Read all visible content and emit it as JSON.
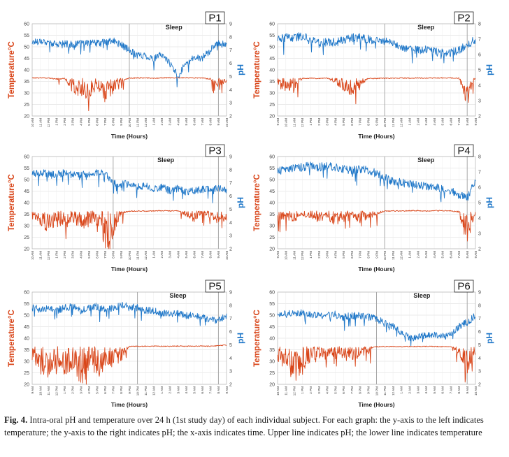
{
  "figure": {
    "caption_label": "Fig. 4.",
    "caption_text": "Intra-oral pH and temperature over 24 h (1st study day) of each individual subject. For each graph: the y-axis to the left indicates temperature; the y-axis to the right indicates pH; the x-axis indicates time. Upper line indicates pH; the lower line indicates temperature"
  },
  "colors": {
    "ph": "#1f77c8",
    "temperature": "#d9461a",
    "grid": "#d7d7d7"
  },
  "chart_data": [
    {
      "id": "P1",
      "type": "line",
      "title": "P1",
      "xlabel": "Time (Hours)",
      "ylabel_left": "Temperature°C",
      "ylabel_right": "pH",
      "annotation": "Sleep",
      "ylim_left": [
        20,
        60
      ],
      "ylim_right": [
        2,
        9
      ],
      "x": [
        "10 AM",
        "11 AM",
        "12 PM",
        "1 PM",
        "2 PM",
        "3 PM",
        "4 PM",
        "5 PM",
        "6 PM",
        "7 PM",
        "8 PM",
        "9 PM",
        "10 PM",
        "11 PM",
        "12 AM",
        "1 AM",
        "2 AM",
        "3 AM",
        "4 AM",
        "5 AM",
        "6 AM",
        "7 AM",
        "8 AM",
        "9 AM",
        "10 AM"
      ],
      "sleep_span": [
        12,
        23
      ],
      "series": [
        {
          "name": "pH",
          "axis": "right",
          "values": [
            7.6,
            7.7,
            7.6,
            7.4,
            7.5,
            7.4,
            7.5,
            7.6,
            7.5,
            7.6,
            7.7,
            7.4,
            7.0,
            6.6,
            6.6,
            6.3,
            6.7,
            6.0,
            5.0,
            6.0,
            6.4,
            6.4,
            7.0,
            7.5,
            7.4
          ]
        },
        {
          "name": "Temperature",
          "axis": "left",
          "values": [
            36.5,
            36.5,
            36.5,
            36.0,
            36.3,
            33.0,
            32.0,
            31.5,
            34.0,
            31.0,
            33.0,
            35.5,
            36.4,
            36.5,
            36.5,
            36.4,
            36.5,
            36.6,
            36.5,
            36.6,
            36.5,
            36.5,
            36.0,
            34.0,
            35.5
          ]
        }
      ]
    },
    {
      "id": "P2",
      "type": "line",
      "title": "P2",
      "xlabel": "Time (Hours)",
      "ylabel_left": "Temperature°C",
      "ylabel_right": "pH",
      "annotation": "Sleep",
      "ylim_left": [
        20,
        60
      ],
      "ylim_right": [
        2,
        8
      ],
      "x": [
        "9 AM",
        "10 AM",
        "11 AM",
        "12 PM",
        "1 PM",
        "2 PM",
        "3 PM",
        "4 PM",
        "5 PM",
        "6 PM",
        "7 PM",
        "8 PM",
        "9 PM",
        "10 PM",
        "11 PM",
        "12 AM",
        "1 AM",
        "2 AM",
        "3 AM",
        "4 AM",
        "5 AM",
        "6 AM",
        "7 AM",
        "8 AM",
        "9 AM"
      ],
      "sleep_span": [
        13,
        23
      ],
      "series": [
        {
          "name": "pH",
          "axis": "right",
          "values": [
            7.0,
            7.1,
            7.1,
            7.2,
            7.0,
            6.8,
            6.8,
            6.8,
            6.9,
            7.1,
            7.1,
            7.0,
            6.9,
            6.9,
            6.7,
            6.5,
            6.4,
            6.3,
            6.3,
            6.2,
            6.1,
            6.1,
            6.3,
            6.6,
            7.0
          ]
        },
        {
          "name": "Temperature",
          "axis": "left",
          "values": [
            35.0,
            34.0,
            33.0,
            36.3,
            36.4,
            36.3,
            36.5,
            35.0,
            33.5,
            32.0,
            34.5,
            36.2,
            36.3,
            36.4,
            36.4,
            36.5,
            36.4,
            36.5,
            36.4,
            36.5,
            36.5,
            36.5,
            36.4,
            30.0,
            36.4
          ]
        }
      ]
    },
    {
      "id": "P3",
      "type": "line",
      "title": "P3",
      "xlabel": "Time (Hours)",
      "ylabel_left": "Temperature°C",
      "ylabel_right": "pH",
      "annotation": "Sleep",
      "ylim_left": [
        20,
        60
      ],
      "ylim_right": [
        2,
        9
      ],
      "x": [
        "10 AM",
        "11 AM",
        "12 PM",
        "1 PM",
        "2 PM",
        "3 PM",
        "4 PM",
        "5 PM",
        "6 PM",
        "7 PM",
        "8 PM",
        "9 PM",
        "10 PM",
        "11 PM",
        "12 AM",
        "1 AM",
        "2 AM",
        "3 AM",
        "4 AM",
        "5 AM",
        "6 AM",
        "7 AM",
        "8 AM",
        "9 AM",
        "10 AM"
      ],
      "sleep_span": [
        10,
        23
      ],
      "series": [
        {
          "name": "pH",
          "axis": "right",
          "values": [
            7.7,
            7.8,
            7.7,
            7.6,
            7.8,
            7.6,
            7.6,
            7.7,
            7.8,
            7.7,
            7.0,
            6.9,
            7.0,
            6.7,
            6.8,
            6.5,
            6.7,
            6.4,
            6.6,
            6.3,
            6.4,
            6.5,
            6.5,
            6.6,
            6.4
          ]
        },
        {
          "name": "Temperature",
          "axis": "left",
          "values": [
            36.0,
            32.5,
            32.0,
            33.0,
            32.5,
            33.5,
            33.0,
            32.0,
            31.5,
            24.0,
            30.0,
            35.5,
            36.3,
            36.4,
            36.3,
            36.4,
            36.5,
            36.4,
            36.5,
            35.0,
            34.0,
            36.0,
            34.5,
            33.5,
            34.0
          ]
        }
      ]
    },
    {
      "id": "P4",
      "type": "line",
      "title": "P4",
      "xlabel": "Time (Hours)",
      "ylabel_left": "Temperature°C",
      "ylabel_right": "pH",
      "annotation": "Sleep",
      "ylim_left": [
        20,
        60
      ],
      "ylim_right": [
        2,
        8
      ],
      "x": [
        "9 AM",
        "10 AM",
        "11 AM",
        "12 PM",
        "1 PM",
        "2 PM",
        "3 PM",
        "4 PM",
        "5 PM",
        "6 PM",
        "7 PM",
        "8 PM",
        "9 PM",
        "10 PM",
        "11 PM",
        "12 AM",
        "1 AM",
        "2 AM",
        "3 AM",
        "4 AM",
        "5 AM",
        "6 AM",
        "7 AM",
        "8 AM",
        "9 AM"
      ],
      "sleep_span": [
        13,
        23
      ],
      "series": [
        {
          "name": "pH",
          "axis": "right",
          "values": [
            7.0,
            7.2,
            7.3,
            7.3,
            7.4,
            7.3,
            7.4,
            7.3,
            7.2,
            7.1,
            7.2,
            7.1,
            6.9,
            6.6,
            6.4,
            6.3,
            6.2,
            6.1,
            6.1,
            6.0,
            5.9,
            5.8,
            5.5,
            5.3,
            6.5
          ]
        },
        {
          "name": "Temperature",
          "axis": "left",
          "values": [
            34.0,
            34.5,
            34.0,
            35.0,
            34.5,
            33.5,
            34.5,
            33.0,
            34.0,
            35.0,
            33.5,
            34.5,
            35.5,
            36.3,
            36.4,
            36.4,
            36.5,
            36.5,
            36.4,
            36.5,
            36.5,
            36.4,
            36.0,
            27.0,
            36.0
          ]
        }
      ]
    },
    {
      "id": "P5",
      "type": "line",
      "title": "P5",
      "xlabel": "Time (Hours)",
      "ylabel_left": "Temperature°C",
      "ylabel_right": "pH",
      "annotation": "Sleep",
      "ylim_left": [
        20,
        60
      ],
      "ylim_right": [
        2,
        9
      ],
      "x": [
        "9 AM",
        "10 AM",
        "11 AM",
        "12 PM",
        "1 PM",
        "2 PM",
        "3 PM",
        "4 PM",
        "5 PM",
        "6 PM",
        "7 PM",
        "8 PM",
        "9 PM",
        "10 PM",
        "11 PM",
        "12 AM",
        "1 AM",
        "2 AM",
        "3 AM",
        "4 AM",
        "5 AM",
        "6 AM",
        "7 AM",
        "8 AM",
        "9 AM"
      ],
      "sleep_span": [
        13,
        23
      ],
      "series": [
        {
          "name": "pH",
          "axis": "right",
          "values": [
            7.8,
            7.7,
            7.8,
            7.6,
            7.8,
            7.9,
            7.6,
            7.8,
            7.9,
            7.7,
            7.8,
            8.0,
            7.9,
            7.8,
            7.6,
            7.6,
            7.4,
            7.3,
            7.4,
            7.2,
            7.3,
            7.1,
            6.9,
            6.8,
            7.2
          ]
        },
        {
          "name": "Temperature",
          "axis": "left",
          "values": [
            33.0,
            30.0,
            29.0,
            30.0,
            28.5,
            31.0,
            28.0,
            30.0,
            29.5,
            31.0,
            32.0,
            33.0,
            36.5,
            36.5,
            36.5,
            36.6,
            36.5,
            36.5,
            36.6,
            36.5,
            36.6,
            36.6,
            36.5,
            36.8,
            37.0
          ]
        }
      ]
    },
    {
      "id": "P6",
      "type": "line",
      "title": "P6",
      "xlabel": "Time (Hours)",
      "ylabel_left": "Temperature°C",
      "ylabel_right": "pH",
      "annotation": "Sleep",
      "ylim_left": [
        20,
        60
      ],
      "ylim_right": [
        2,
        9
      ],
      "x": [
        "10 AM",
        "11 AM",
        "12 PM",
        "1 PM",
        "2 PM",
        "3 PM",
        "4 PM",
        "5 PM",
        "6 PM",
        "7 PM",
        "8 PM",
        "9 PM",
        "10 PM",
        "11 PM",
        "12 AM",
        "1 AM",
        "2 AM",
        "3 AM",
        "4 AM",
        "5 AM",
        "6 AM",
        "7 AM",
        "8 AM",
        "9 AM",
        "10 AM"
      ],
      "sleep_span": [
        12,
        23
      ],
      "series": [
        {
          "name": "pH",
          "axis": "right",
          "values": [
            7.4,
            7.3,
            7.4,
            7.4,
            7.3,
            7.2,
            7.2,
            7.3,
            7.1,
            7.2,
            7.2,
            7.1,
            7.0,
            6.6,
            6.4,
            6.0,
            5.5,
            5.6,
            5.7,
            5.8,
            5.6,
            5.8,
            6.4,
            6.7,
            7.2
          ]
        },
        {
          "name": "Temperature",
          "axis": "left",
          "values": [
            33.0,
            32.0,
            28.0,
            31.0,
            33.0,
            34.0,
            33.0,
            34.5,
            34.0,
            33.5,
            34.0,
            35.5,
            36.3,
            36.4,
            36.4,
            36.3,
            36.4,
            36.4,
            36.5,
            36.4,
            36.3,
            36.5,
            34.5,
            30.0,
            33.5
          ]
        }
      ]
    }
  ]
}
